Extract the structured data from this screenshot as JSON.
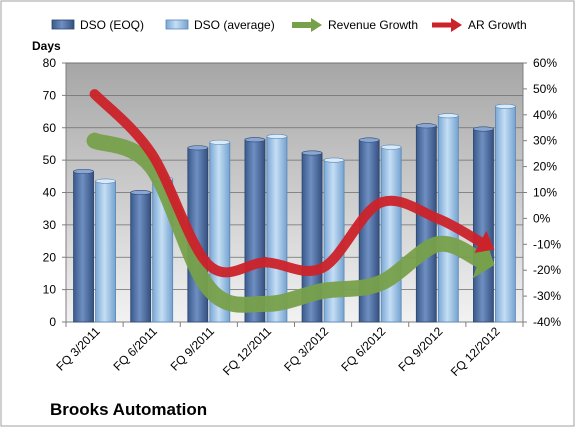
{
  "chart_data": {
    "type": "bar",
    "company": "Brooks Automation",
    "y_left_title": "Days",
    "y_left_range": [
      0,
      80
    ],
    "y_left_ticks": [
      0,
      10,
      20,
      30,
      40,
      50,
      60,
      70,
      80
    ],
    "y_right_range": [
      -40,
      60
    ],
    "y_right_ticks": [
      -40,
      -30,
      -20,
      -10,
      0,
      10,
      20,
      30,
      40,
      50,
      60
    ],
    "y_right_unit": "%",
    "grid": "horizontal",
    "legend_position": "top",
    "categories": [
      "FQ 3/2011",
      "FQ 6/2011",
      "FQ 9/2011",
      "FQ 12/2011",
      "FQ 3/2012",
      "FQ 6/2012",
      "FQ 9/2012",
      "FQ 12/2012"
    ],
    "series": [
      {
        "name": "DSO (EOQ)",
        "kind": "bar",
        "axis": "left",
        "color": "#4f6fa5",
        "values": [
          46.5,
          40,
          53.8,
          56.3,
          52.2,
          56.2,
          60.6,
          59.6
        ]
      },
      {
        "name": "DSO (average)",
        "kind": "bar",
        "axis": "left",
        "color": "#9ec4e6",
        "values": [
          43.5,
          44.2,
          55.5,
          57.3,
          50,
          54,
          63.7,
          66.6
        ]
      },
      {
        "name": "Revenue Growth",
        "kind": "arrow-line",
        "axis": "right",
        "color": "#77a04a",
        "values": [
          30,
          20,
          -27,
          -33,
          -28,
          -25,
          -10,
          -18
        ]
      },
      {
        "name": "AR Growth",
        "kind": "arrow-line",
        "axis": "right",
        "color": "#cc2229",
        "values": [
          48,
          25,
          -18,
          -17,
          -19,
          6,
          0,
          -12
        ]
      }
    ]
  }
}
